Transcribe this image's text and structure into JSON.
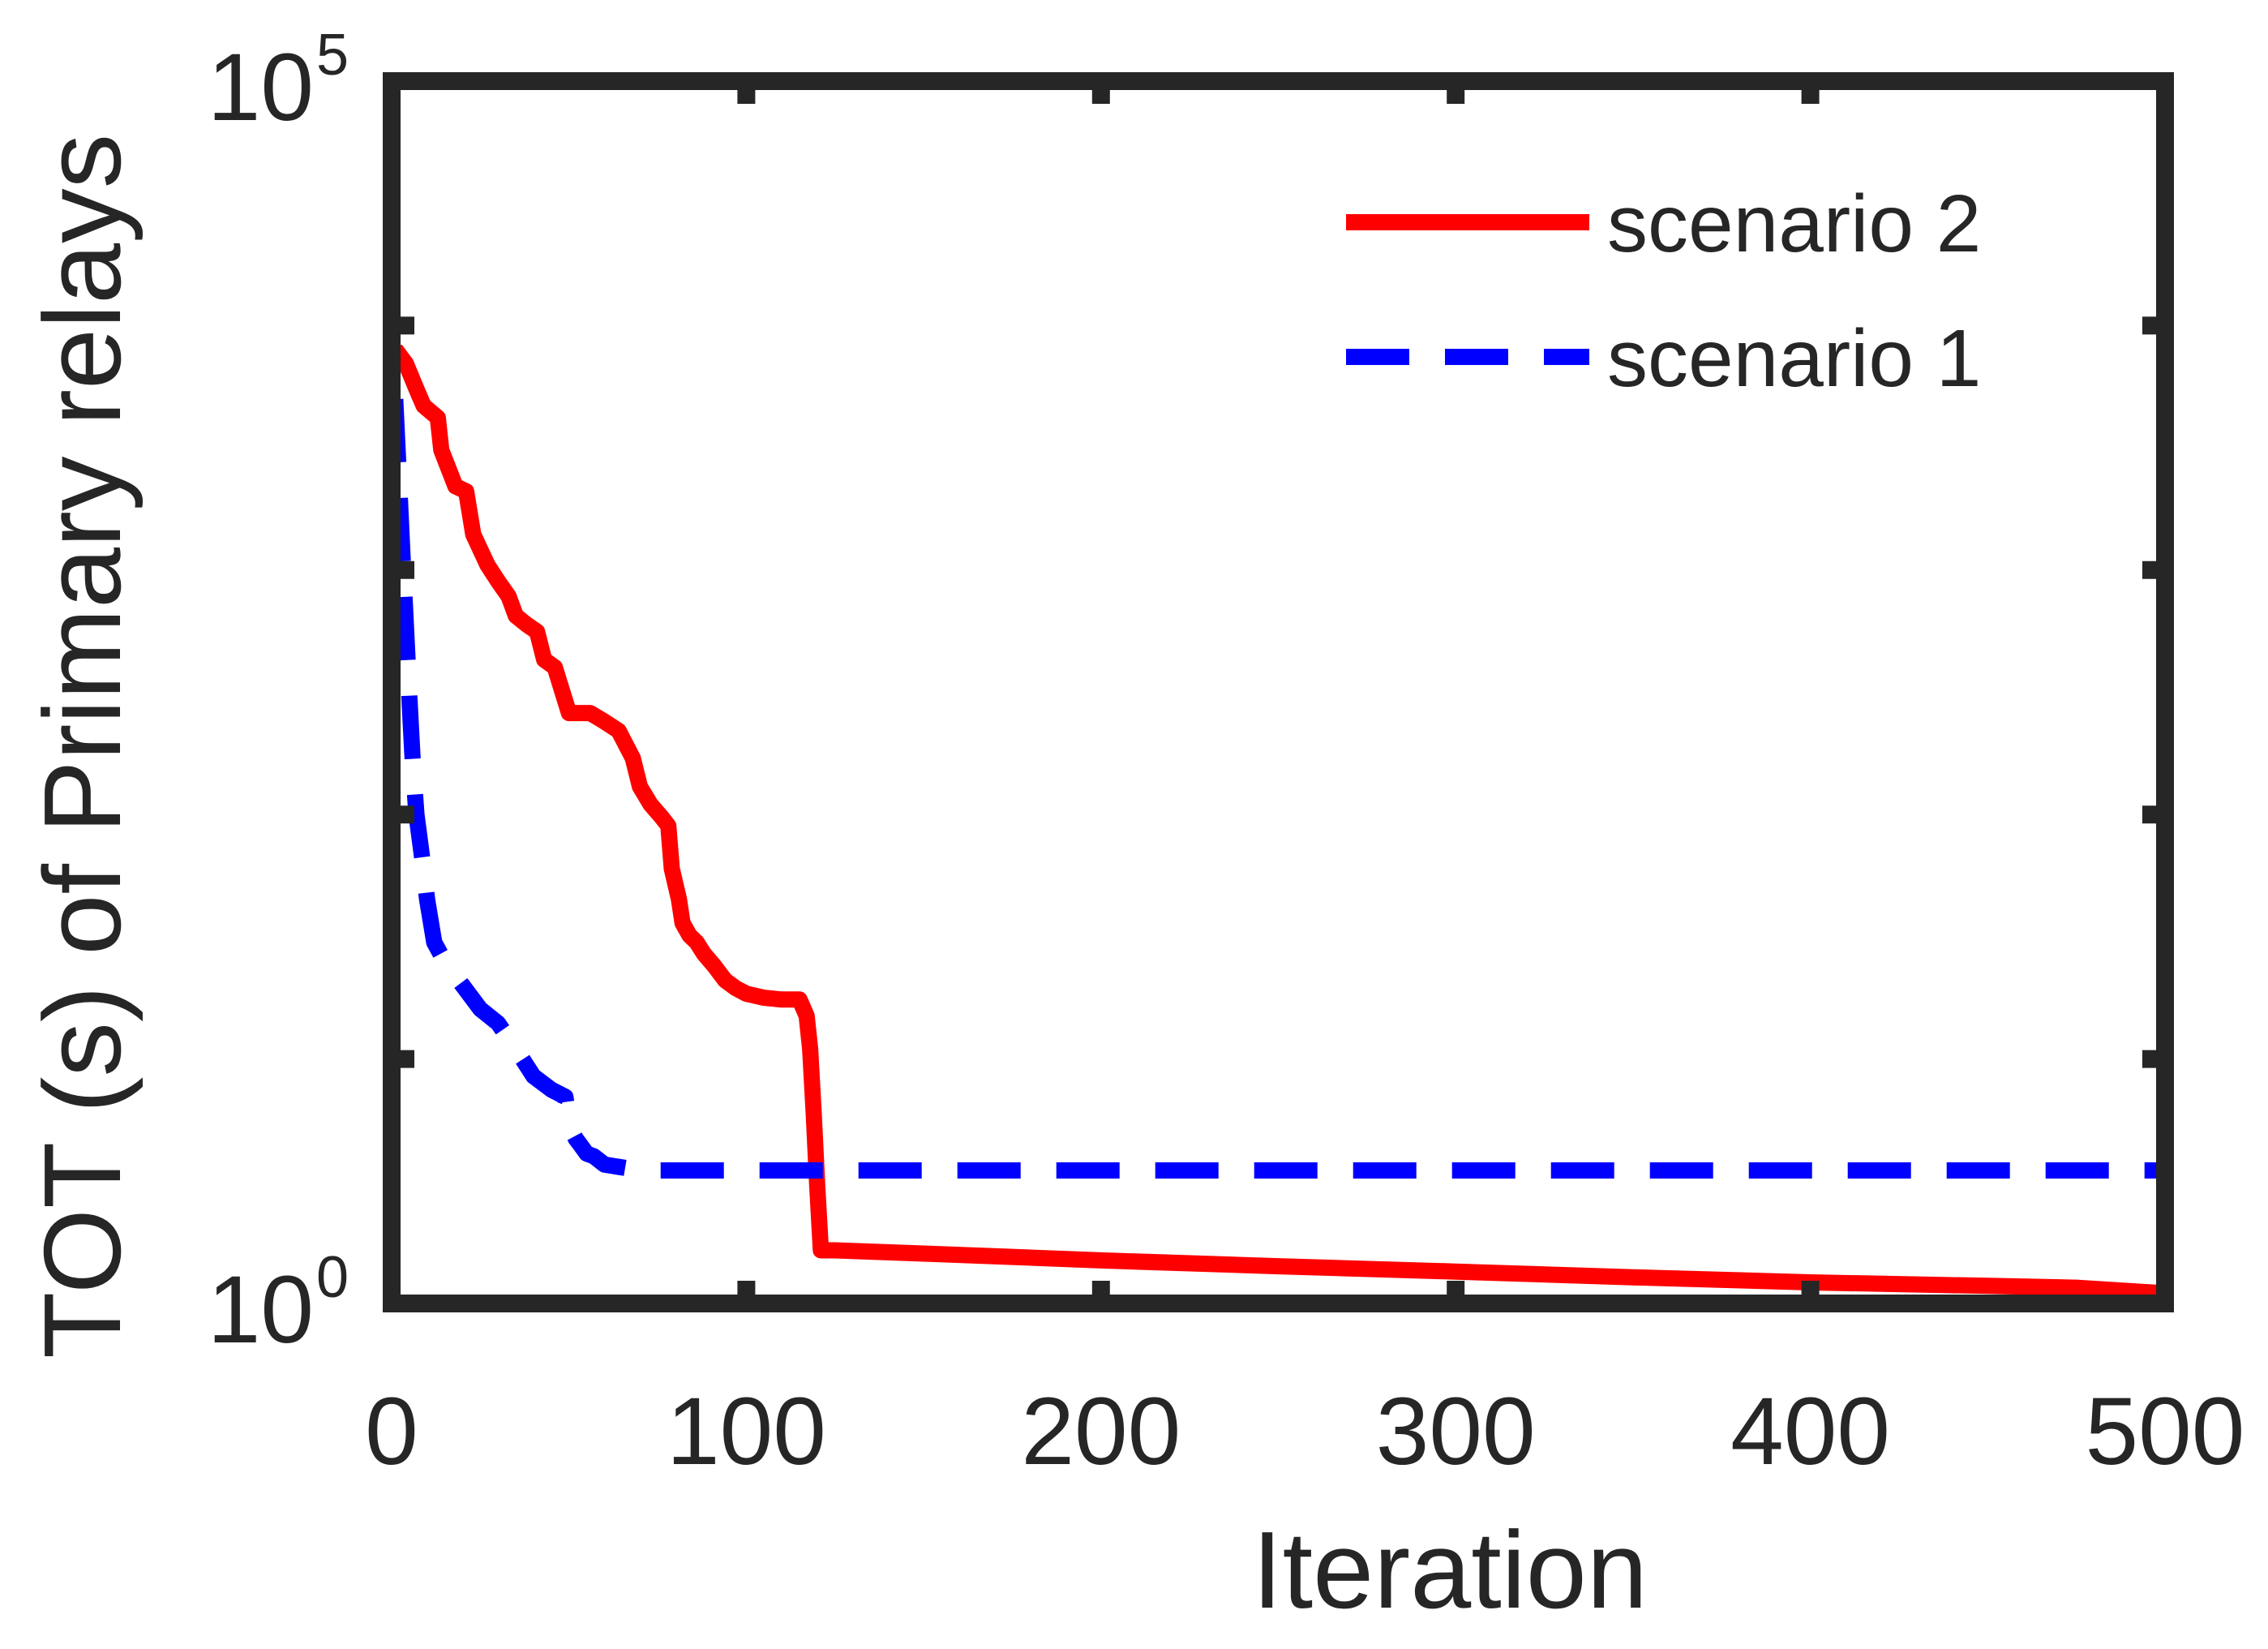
{
  "chart_data": {
    "type": "line",
    "title": "",
    "xlabel": "Iteration",
    "ylabel": "TOT (s) of Primary relays",
    "xlim": [
      0,
      500
    ],
    "ylim": [
      1,
      100000
    ],
    "yscale": "log",
    "grid": false,
    "legend_position": "top-right",
    "x_ticks": [
      {
        "value": 0,
        "label": "0"
      },
      {
        "value": 100,
        "label": "100"
      },
      {
        "value": 200,
        "label": "200"
      },
      {
        "value": 300,
        "label": "300"
      },
      {
        "value": 400,
        "label": "400"
      },
      {
        "value": 500,
        "label": "500"
      }
    ],
    "y_ticks": [
      {
        "value": 1,
        "base": "10",
        "exp": "0"
      },
      {
        "value": 100000,
        "base": "10",
        "exp": "5"
      }
    ],
    "series": [
      {
        "name": "scenario 2",
        "color": "#ff0000",
        "style": "solid",
        "x": [
          1,
          4,
          7,
          9,
          13,
          14,
          18,
          21,
          23,
          27,
          30,
          33,
          35,
          38,
          41,
          43,
          46,
          50,
          53,
          56,
          60,
          64,
          68,
          70,
          73,
          76,
          78,
          79,
          81,
          82,
          84,
          86,
          88,
          91,
          94,
          97,
          100,
          105,
          110,
          115,
          117,
          118,
          119,
          120,
          121,
          123,
          125,
          150,
          175,
          200,
          250,
          300,
          350,
          400,
          450,
          475,
          500
        ],
        "y": [
          8000,
          7000,
          5500,
          4700,
          4200,
          3100,
          2200,
          2100,
          1400,
          1050,
          900,
          780,
          650,
          600,
          560,
          430,
          400,
          260,
          260,
          260,
          240,
          220,
          170,
          130,
          110,
          98,
          90,
          60,
          45,
          36,
          32,
          30,
          27,
          24,
          21,
          19.5,
          18.5,
          17.8,
          17.5,
          17.5,
          15,
          11,
          6,
          3,
          1.65,
          1.65,
          1.65,
          1.6,
          1.55,
          1.5,
          1.42,
          1.35,
          1.28,
          1.22,
          1.18,
          1.16,
          1.1
        ]
      },
      {
        "name": "scenario 1",
        "color": "#0000ff",
        "style": "dashed",
        "x": [
          1,
          2,
          3,
          4,
          5,
          6,
          7,
          9,
          10,
          12,
          15,
          20,
          25,
          30,
          35,
          40,
          45,
          49,
          50,
          51,
          52,
          53,
          55,
          57,
          60,
          65,
          70,
          100,
          200,
          300,
          400,
          500
        ],
        "y": [
          5000,
          2500,
          1200,
          600,
          300,
          160,
          100,
          60,
          45,
          30,
          25,
          20,
          16,
          14,
          11,
          8.5,
          7.5,
          7,
          5.5,
          5,
          4.7,
          4.5,
          4.1,
          4.0,
          3.7,
          3.6,
          3.5,
          3.5,
          3.5,
          3.5,
          3.5,
          3.5
        ]
      }
    ]
  }
}
